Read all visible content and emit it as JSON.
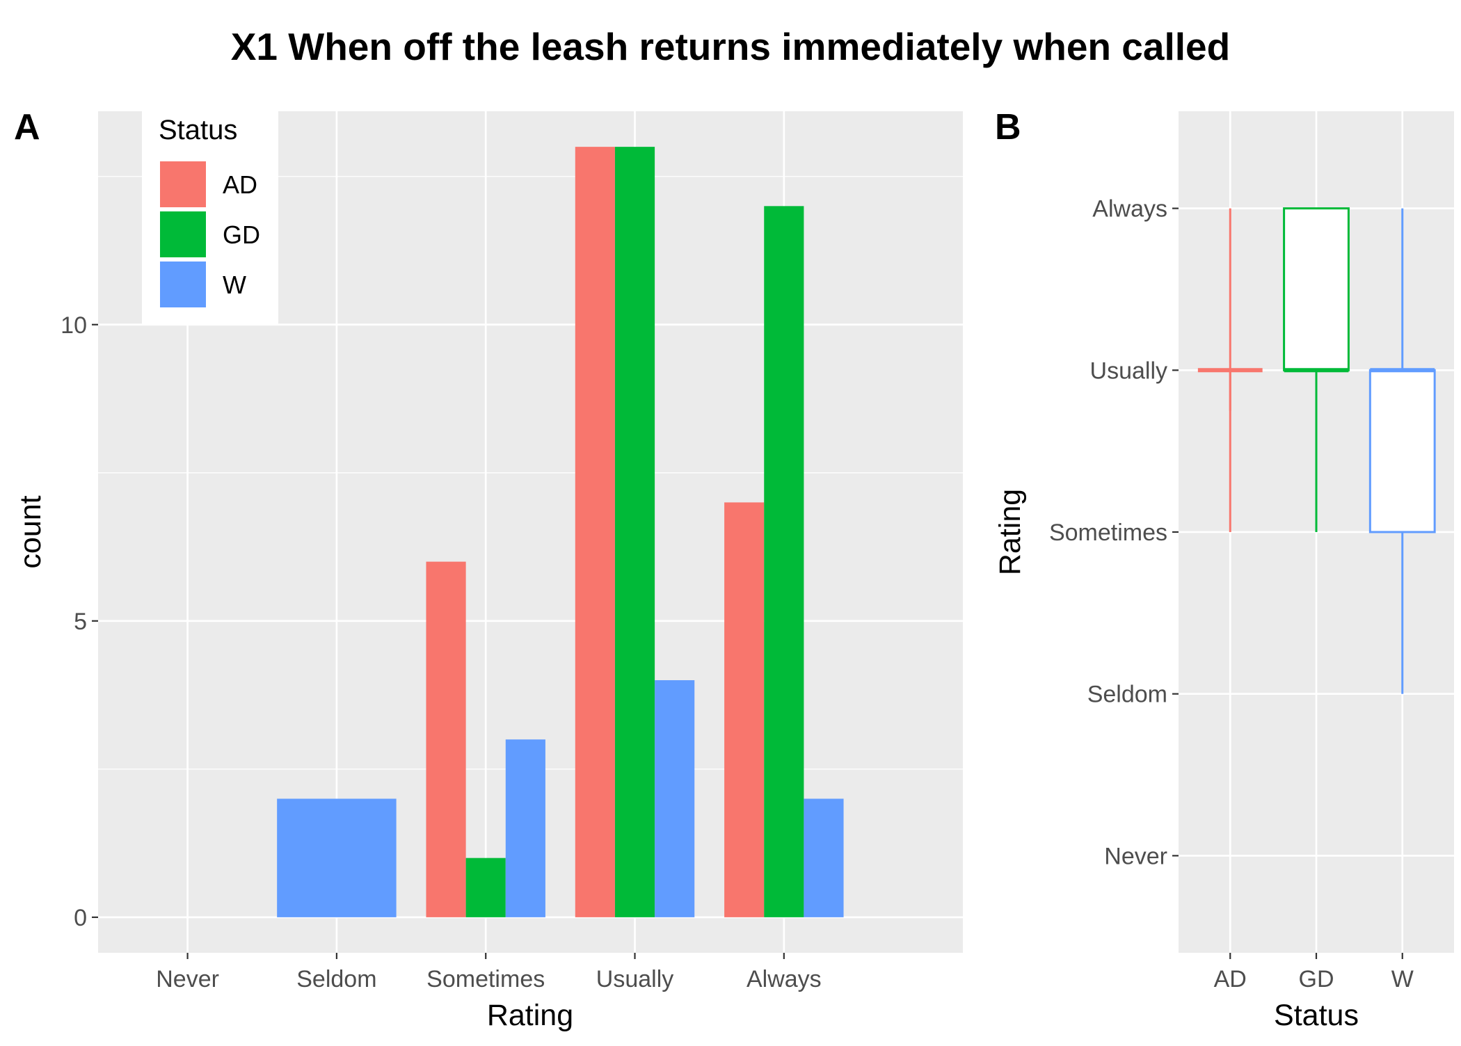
{
  "title": "X1 When off the leash returns immediately when called",
  "colors": {
    "AD": "#F8766D",
    "GD": "#00BA38",
    "W": "#619CFF",
    "panel_bg": "#EBEBEB",
    "grid": "#FFFFFF",
    "tick_text": "#4D4D4D",
    "axis_title": "#000000"
  },
  "chart_data": [
    {
      "tag": "A",
      "type": "bar",
      "categories": [
        "Never",
        "Seldom",
        "Sometimes",
        "Usually",
        "Always"
      ],
      "series": [
        {
          "name": "AD",
          "values": [
            0,
            0,
            6,
            13,
            7
          ]
        },
        {
          "name": "GD",
          "values": [
            0,
            0,
            1,
            13,
            12
          ]
        },
        {
          "name": "W",
          "values": [
            0,
            2,
            3,
            4,
            2
          ]
        }
      ],
      "xlabel": "Rating",
      "ylabel": "count",
      "ylim": [
        -0.6,
        13.6
      ],
      "yticks": [
        0,
        5,
        10
      ],
      "grid": true,
      "legend": {
        "title": "Status",
        "placement": "top-left",
        "entries": [
          "AD",
          "GD",
          "W"
        ]
      }
    },
    {
      "tag": "B",
      "type": "boxplot",
      "categories": [
        "AD",
        "GD",
        "W"
      ],
      "levels": [
        "Never",
        "Seldom",
        "Sometimes",
        "Usually",
        "Always"
      ],
      "boxes": [
        {
          "name": "AD",
          "whisker_low": "Sometimes",
          "q1": "Usually",
          "median": "Usually",
          "q3": 3.75,
          "whisker_high": "Always"
        },
        {
          "name": "GD",
          "whisker_low": "Sometimes",
          "q1": "Usually",
          "median": "Usually",
          "q3": "Always",
          "whisker_high": "Always"
        },
        {
          "name": "W",
          "whisker_low": "Seldom",
          "q1": "Sometimes",
          "median": "Usually",
          "q3": "Usually",
          "whisker_high": "Always"
        }
      ],
      "xlabel": "Status",
      "ylabel": "Rating",
      "grid": true
    }
  ]
}
